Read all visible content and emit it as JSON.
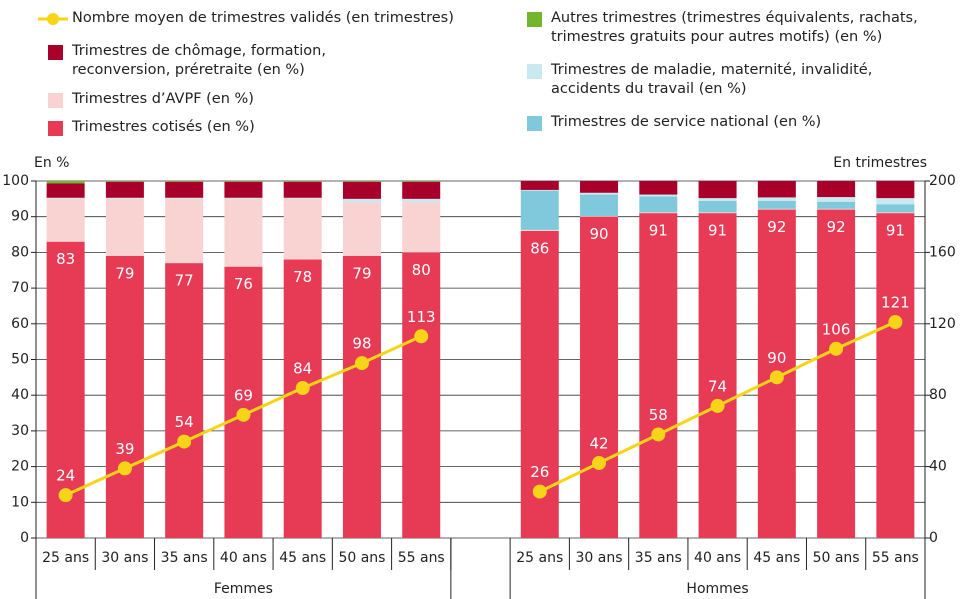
{
  "chart_data": {
    "type": "stacked_bar_line",
    "y_label": "En %",
    "y2_label": "En trimestres",
    "groups": [
      "Femmes",
      "Hommes"
    ],
    "categories": [
      "25 ans",
      "30 ans",
      "35 ans",
      "40 ans",
      "45 ans",
      "50 ans",
      "55 ans",
      null,
      "25 ans",
      "30 ans",
      "35 ans",
      "40 ans",
      "45 ans",
      "50 ans",
      "55 ans"
    ],
    "ylim": [
      0,
      100
    ],
    "yticks": [
      0,
      10,
      20,
      30,
      40,
      50,
      60,
      70,
      80,
      90,
      100
    ],
    "y2lim": [
      0,
      200
    ],
    "y2ticks": [
      0,
      40,
      80,
      120,
      160,
      200
    ],
    "series": [
      {
        "name": "Trimestres cotisés (en %)",
        "color": "#e63a55",
        "values": [
          83,
          79,
          77,
          76,
          78,
          79,
          80,
          null,
          86,
          90,
          91,
          91,
          92,
          92,
          91
        ]
      },
      {
        "name": "Trimestres d’AVPF (en %)",
        "color": "#f9d2d2",
        "values": [
          12,
          16,
          18,
          19,
          17,
          15,
          14,
          null,
          0.3,
          0.2,
          0.2,
          0.2,
          0.2,
          0.2,
          0.2
        ]
      },
      {
        "name": "Trimestres de service national (en %)",
        "color": "#80c9dd",
        "values": [
          0,
          0,
          0,
          0,
          0,
          0,
          0,
          null,
          11,
          6,
          4.5,
          3.2,
          2.2,
          2,
          2.3
        ]
      },
      {
        "name": "Trimestres de maladie, maternité, invalidité, accidents du travail (en %)",
        "color": "#c9e9f1",
        "values": [
          0.3,
          0.3,
          0.3,
          0.3,
          0.3,
          1,
          1,
          null,
          0.2,
          0.5,
          0.5,
          0.8,
          1,
          1.3,
          1.7
        ]
      },
      {
        "name": "Trimestres de chômage, formation, reconversion, préretraite (en %)",
        "color": "#a8002b",
        "values": [
          4,
          4.5,
          4.5,
          4.5,
          4.5,
          4.8,
          4.8,
          null,
          2.5,
          3.3,
          3.8,
          4.8,
          4.6,
          4.5,
          4.8
        ]
      },
      {
        "name": "Autres trimestres (trimestres équivalents, rachats, trimestres gratuits pour autres motifs) (en %)",
        "color": "#72b62e",
        "values": [
          0.7,
          0.2,
          0.2,
          0.2,
          0.2,
          0.2,
          0.2,
          null,
          0,
          0,
          0,
          0,
          0,
          0,
          0
        ]
      },
      {
        "name": "Nombre moyen de trimestres validés (en trimestres)",
        "color": "#f7d417",
        "axis": "y2",
        "values": [
          24,
          39,
          54,
          69,
          84,
          98,
          113,
          null,
          26,
          42,
          58,
          74,
          90,
          106,
          121
        ]
      }
    ]
  }
}
